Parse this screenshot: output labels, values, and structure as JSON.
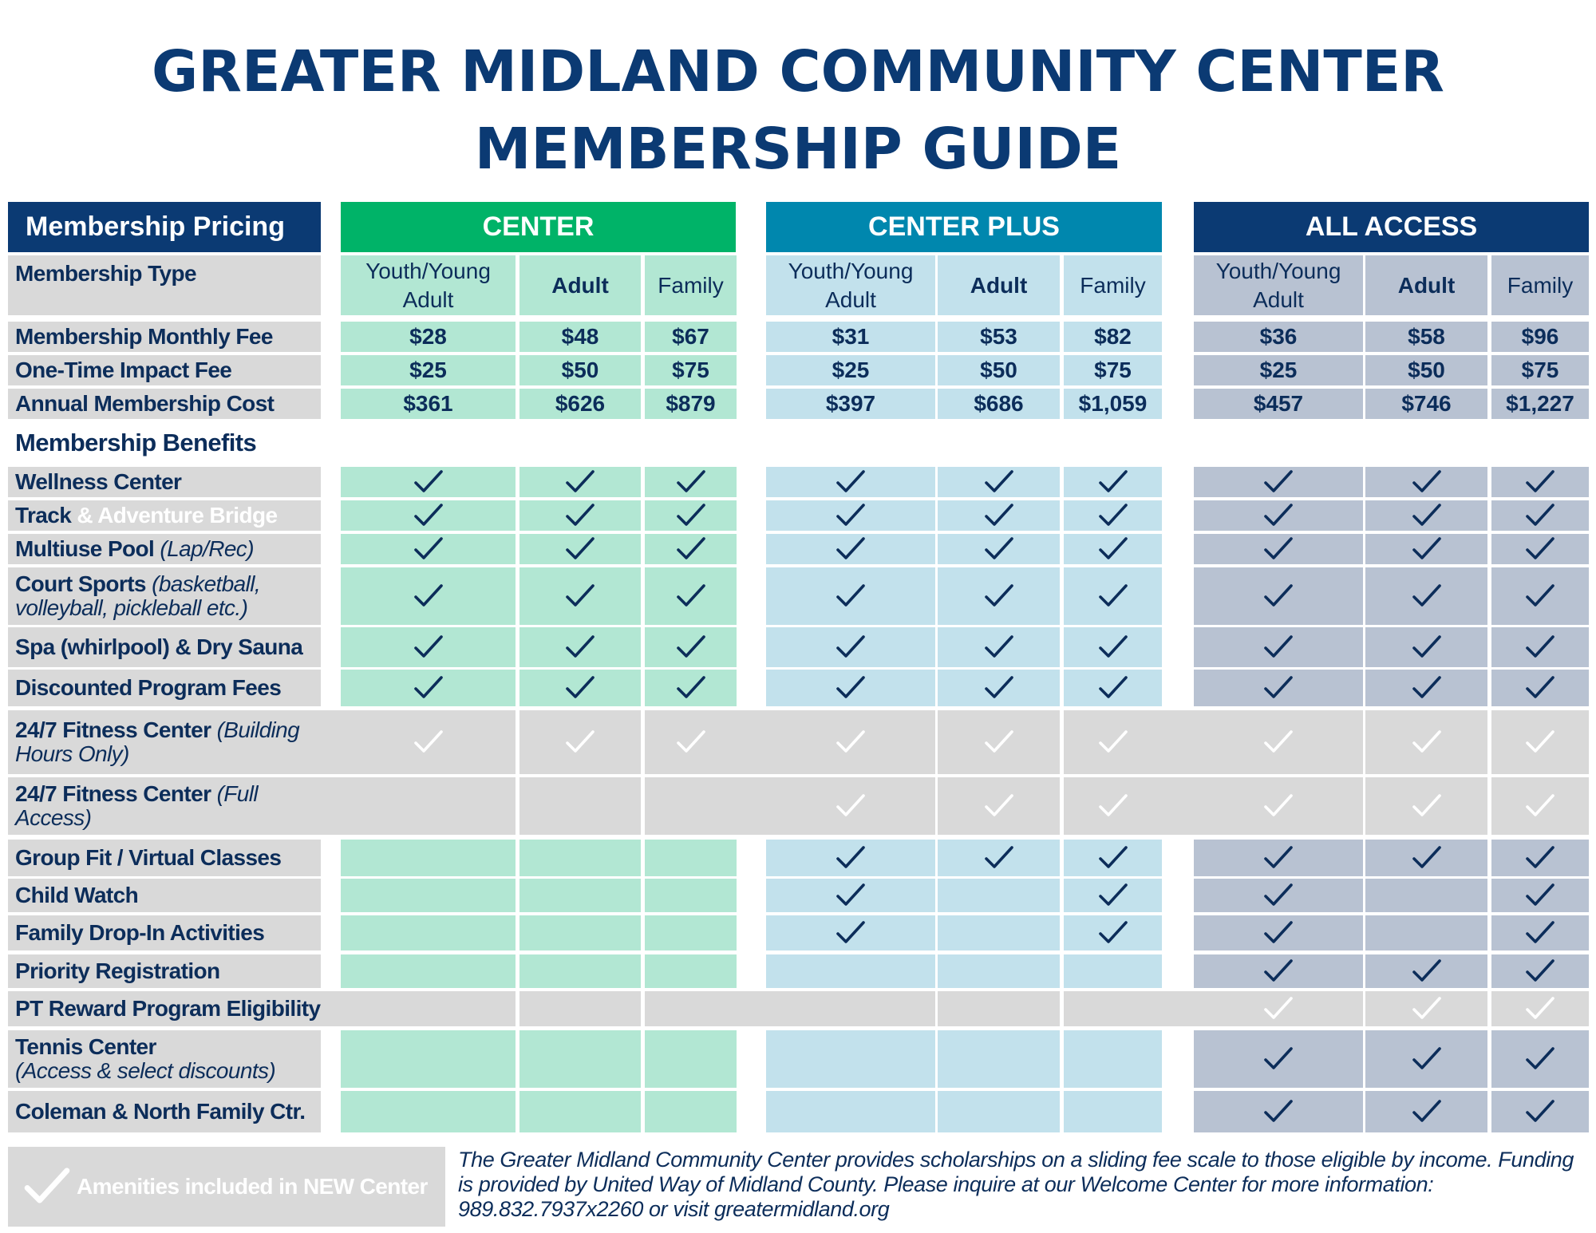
{
  "title": {
    "line1": "GREATER MIDLAND COMMUNITY CENTER",
    "line2": "MEMBERSHIP GUIDE"
  },
  "colors": {
    "center": "#00b368",
    "center_plus": "#0087ae",
    "all_access": "#0b3a73",
    "center_light": "#b2e7d3",
    "plus_light": "#c2e1ec",
    "access_light": "#b8c2d2",
    "gray": "#d9d9d9",
    "navy": "#0c2d5a"
  },
  "pricing_header": "Membership Pricing",
  "plans": [
    "CENTER",
    "CENTER PLUS",
    "ALL ACCESS"
  ],
  "type_label": "Membership Type",
  "types": [
    {
      "line1": "Youth/Young",
      "line2": "Adult"
    },
    {
      "line1": "Adult",
      "line2": ""
    },
    {
      "line1": "Family",
      "line2": ""
    }
  ],
  "price_rows": [
    {
      "label": "Membership Monthly Fee",
      "values": [
        "$28",
        "$48",
        "$67",
        "$31",
        "$53",
        "$82",
        "$36",
        "$58",
        "$96"
      ]
    },
    {
      "label": "One-Time Impact Fee",
      "values": [
        "$25",
        "$50",
        "$75",
        "$25",
        "$50",
        "$75",
        "$25",
        "$50",
        "$75"
      ]
    },
    {
      "label": "Annual Membership Cost",
      "values": [
        "$361",
        "$626",
        "$879",
        "$397",
        "$686",
        "$1,059",
        "$457",
        "$746",
        "$1,227"
      ]
    }
  ],
  "benefits_header": "Membership Benefits",
  "benefits": [
    {
      "label": "Wellness Center",
      "style": "color",
      "checks": [
        1,
        1,
        1,
        1,
        1,
        1,
        1,
        1,
        1
      ]
    },
    {
      "label": "Track",
      "label_light": " & Adventure Bridge",
      "style": "color",
      "checks": [
        1,
        1,
        1,
        1,
        1,
        1,
        1,
        1,
        1
      ]
    },
    {
      "label": "Multiuse Pool ",
      "label_italic": "(Lap/Rec)",
      "style": "color",
      "checks": [
        1,
        1,
        1,
        1,
        1,
        1,
        1,
        1,
        1
      ]
    },
    {
      "label": "Court Sports ",
      "label_italic": "(basketball,",
      "label2": "volleyball, pickleball etc.)",
      "style": "color",
      "checks": [
        1,
        1,
        1,
        1,
        1,
        1,
        1,
        1,
        1
      ]
    },
    {
      "label": "Spa (whirlpool) & Dry Sauna",
      "style": "color",
      "checks": [
        1,
        1,
        1,
        1,
        1,
        1,
        1,
        1,
        1
      ]
    },
    {
      "label": "Discounted Program Fees",
      "style": "color",
      "checks": [
        1,
        1,
        1,
        1,
        1,
        1,
        1,
        1,
        1
      ]
    },
    {
      "label": "24/7 Fitness Center ",
      "label_italic": "(Building",
      "label2": "Hours Only)",
      "style": "gray",
      "checks": [
        1,
        1,
        1,
        1,
        1,
        1,
        1,
        1,
        1
      ]
    },
    {
      "label": "24/7 Fitness Center ",
      "label_italic": "(Full",
      "label2": "Access)",
      "style": "gray",
      "checks": [
        0,
        0,
        0,
        1,
        1,
        1,
        1,
        1,
        1
      ]
    },
    {
      "label": "Group Fit / Virtual Classes",
      "style": "color",
      "checks": [
        0,
        0,
        0,
        1,
        1,
        1,
        1,
        1,
        1
      ]
    },
    {
      "label": "Child Watch",
      "style": "color",
      "checks": [
        0,
        0,
        0,
        1,
        0,
        1,
        1,
        0,
        1
      ]
    },
    {
      "label": "Family Drop-In Activities",
      "style": "color",
      "checks": [
        0,
        0,
        0,
        1,
        0,
        1,
        1,
        0,
        1
      ]
    },
    {
      "label": "Priority Registration",
      "style": "color",
      "checks": [
        0,
        0,
        0,
        0,
        0,
        0,
        1,
        1,
        1
      ]
    },
    {
      "label": "PT Reward Program Eligibility",
      "style": "gray",
      "checks": [
        0,
        0,
        0,
        0,
        0,
        0,
        1,
        1,
        1
      ]
    },
    {
      "label": "Tennis Center",
      "label2": "(Access & select discounts)",
      "style": "color",
      "checks": [
        0,
        0,
        0,
        0,
        0,
        0,
        1,
        1,
        1
      ]
    },
    {
      "label": "Coleman & North Family Ctr.",
      "style": "color",
      "checks": [
        0,
        0,
        0,
        0,
        0,
        0,
        1,
        1,
        1
      ]
    }
  ],
  "legend": {
    "text": "Amenities included in NEW Center",
    "icon": "check-icon"
  },
  "footer": "The Greater Midland Community Center provides scholarships on a sliding fee scale to those eligible by income. Funding is provided by United Way of Midland County. Please inquire at our Welcome Center for more information: 989.832.7937x2260 or visit greatermidland.org"
}
